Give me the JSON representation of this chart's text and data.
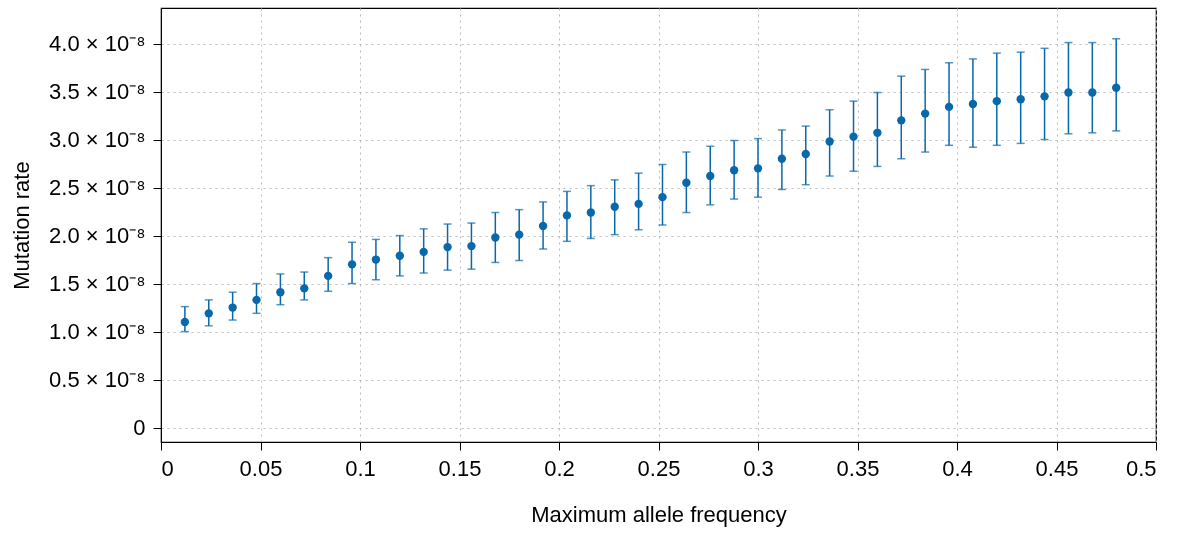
{
  "chart_data": {
    "type": "scatter",
    "xlabel": "Maximum allele frequency",
    "ylabel": "Mutation rate",
    "x": [
      0.012,
      0.024,
      0.036,
      0.048,
      0.06,
      0.072,
      0.084,
      0.096,
      0.108,
      0.12,
      0.132,
      0.144,
      0.156,
      0.168,
      0.18,
      0.192,
      0.204,
      0.216,
      0.228,
      0.24,
      0.252,
      0.264,
      0.276,
      0.288,
      0.3,
      0.312,
      0.324,
      0.336,
      0.348,
      0.36,
      0.372,
      0.384,
      0.396,
      0.408,
      0.42,
      0.432,
      0.444,
      0.456,
      0.468,
      0.48
    ],
    "series": [
      {
        "color": "#0868ac",
        "values": [
          1.1e-08,
          1.19e-08,
          1.25e-08,
          1.33e-08,
          1.41e-08,
          1.45e-08,
          1.58e-08,
          1.7e-08,
          1.75e-08,
          1.79e-08,
          1.83e-08,
          1.88e-08,
          1.89e-08,
          1.98e-08,
          2.01e-08,
          2.1e-08,
          2.21e-08,
          2.24e-08,
          2.3e-08,
          2.33e-08,
          2.4e-08,
          2.55e-08,
          2.62e-08,
          2.68e-08,
          2.7e-08,
          2.8e-08,
          2.85e-08,
          2.98e-08,
          3.03e-08,
          3.07e-08,
          3.2e-08,
          3.27e-08,
          3.34e-08,
          3.37e-08,
          3.4e-08,
          3.42e-08,
          3.45e-08,
          3.49e-08,
          3.49e-08,
          3.54e-08
        ],
        "errors": [
          [
            1e-08,
            1.26e-08
          ],
          [
            1.06e-08,
            1.33e-08
          ],
          [
            1.12e-08,
            1.41e-08
          ],
          [
            1.19e-08,
            1.5e-08
          ],
          [
            1.28e-08,
            1.6e-08
          ],
          [
            1.33e-08,
            1.62e-08
          ],
          [
            1.42e-08,
            1.77e-08
          ],
          [
            1.5e-08,
            1.93e-08
          ],
          [
            1.54e-08,
            1.96e-08
          ],
          [
            1.58e-08,
            2e-08
          ],
          [
            1.61e-08,
            2.07e-08
          ],
          [
            1.64e-08,
            2.12e-08
          ],
          [
            1.65e-08,
            2.13e-08
          ],
          [
            1.72e-08,
            2.24e-08
          ],
          [
            1.74e-08,
            2.27e-08
          ],
          [
            1.86e-08,
            2.35e-08
          ],
          [
            1.94e-08,
            2.46e-08
          ],
          [
            1.97e-08,
            2.52e-08
          ],
          [
            2.01e-08,
            2.58e-08
          ],
          [
            2.06e-08,
            2.65e-08
          ],
          [
            2.11e-08,
            2.74e-08
          ],
          [
            2.24e-08,
            2.87e-08
          ],
          [
            2.32e-08,
            2.93e-08
          ],
          [
            2.38e-08,
            2.99e-08
          ],
          [
            2.4e-08,
            3.01e-08
          ],
          [
            2.48e-08,
            3.1e-08
          ],
          [
            2.53e-08,
            3.14e-08
          ],
          [
            2.62e-08,
            3.31e-08
          ],
          [
            2.67e-08,
            3.4e-08
          ],
          [
            2.72e-08,
            3.49e-08
          ],
          [
            2.8e-08,
            3.66e-08
          ],
          [
            2.87e-08,
            3.73e-08
          ],
          [
            2.94e-08,
            3.8e-08
          ],
          [
            2.92e-08,
            3.84e-08
          ],
          [
            2.94e-08,
            3.9e-08
          ],
          [
            2.96e-08,
            3.91e-08
          ],
          [
            3e-08,
            3.95e-08
          ],
          [
            3.06e-08,
            4.01e-08
          ],
          [
            3.07e-08,
            4.01e-08
          ],
          [
            3.09e-08,
            4.05e-08
          ]
        ]
      }
    ],
    "xlim": [
      0,
      0.5
    ],
    "xticks": [
      0,
      0.05,
      0.1,
      0.15,
      0.2,
      0.25,
      0.3,
      0.35,
      0.4,
      0.45,
      0.5
    ],
    "ylim": [
      -1.5e-09,
      4.37e-08
    ],
    "yticks": [
      0,
      {
        "value": 5e-09,
        "label": "0.5 × 10⁻⁸"
      },
      {
        "value": 1e-08,
        "label": "1.0 × 10⁻⁸"
      },
      {
        "value": 1.5e-08,
        "label": "1.5 × 10⁻⁸"
      },
      {
        "value": 2e-08,
        "label": "2.0 × 10⁻⁸"
      },
      {
        "value": 2.5e-08,
        "label": "2.5 × 10⁻⁸"
      },
      {
        "value": 3e-08,
        "label": "3.0 × 10⁻⁸"
      },
      {
        "value": 3.5e-08,
        "label": "3.5 × 10⁻⁸"
      },
      {
        "value": 4e-08,
        "label": "4.0 × 10⁻⁸"
      }
    ],
    "grid": true,
    "marker": "circle"
  }
}
